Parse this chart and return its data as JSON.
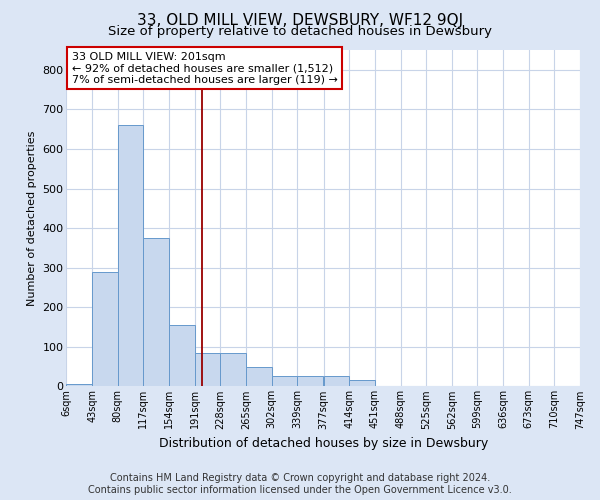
{
  "title": "33, OLD MILL VIEW, DEWSBURY, WF12 9QJ",
  "subtitle": "Size of property relative to detached houses in Dewsbury",
  "xlabel": "Distribution of detached houses by size in Dewsbury",
  "ylabel": "Number of detached properties",
  "bin_edges": [
    6,
    43,
    80,
    117,
    154,
    191,
    228,
    265,
    302,
    339,
    377,
    414,
    451,
    488,
    525,
    562,
    599,
    636,
    673,
    710,
    747
  ],
  "bar_heights": [
    5,
    290,
    660,
    375,
    155,
    85,
    85,
    50,
    25,
    25,
    25,
    15,
    0,
    0,
    0,
    0,
    0,
    0,
    0,
    0
  ],
  "bar_color": "#c8d8ee",
  "bar_edgecolor": "#6699cc",
  "property_line_x": 201,
  "ylim": [
    0,
    850
  ],
  "ann_line1": "33 OLD MILL VIEW: 201sqm",
  "ann_line2": "← 92% of detached houses are smaller (1,512)",
  "ann_line3": "7% of semi-detached houses are larger (119) →",
  "footer_line1": "Contains HM Land Registry data © Crown copyright and database right 2024.",
  "footer_line2": "Contains public sector information licensed under the Open Government Licence v3.0.",
  "bg_color": "#dce6f5",
  "plot_bg_color": "#ffffff",
  "grid_color": "#c8d4e8",
  "title_fontsize": 11,
  "subtitle_fontsize": 9.5,
  "axis_fontsize": 8,
  "ann_fontsize": 8,
  "footer_fontsize": 7
}
